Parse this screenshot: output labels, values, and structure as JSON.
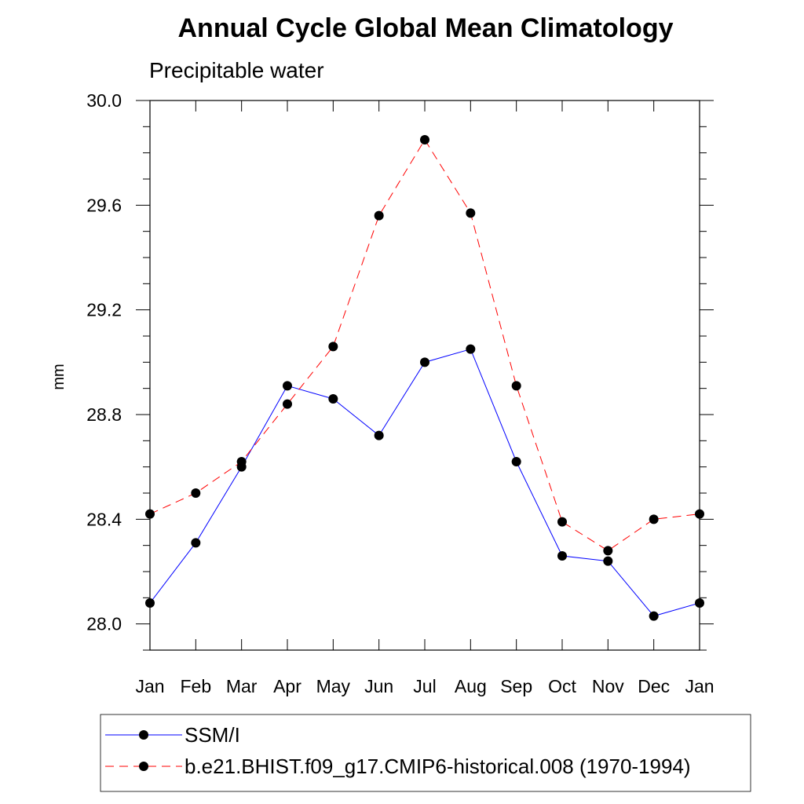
{
  "chart_data": {
    "type": "line",
    "title": "Annual Cycle Global Mean Climatology",
    "subtitle": "Precipitable water",
    "xlabel": "",
    "ylabel": "mm",
    "categories": [
      "Jan",
      "Feb",
      "Mar",
      "Apr",
      "May",
      "Jun",
      "Jul",
      "Aug",
      "Sep",
      "Oct",
      "Nov",
      "Dec",
      "Jan"
    ],
    "ylim": [
      27.9,
      30.0
    ],
    "yticks": [
      "28.0",
      "28.4",
      "28.8",
      "29.2",
      "29.6",
      "30.0"
    ],
    "ytick_values": [
      28.0,
      28.4,
      28.8,
      29.2,
      29.6,
      30.0
    ],
    "series": [
      {
        "name": "SSM/I",
        "color": "#0000ff",
        "dash": "solid",
        "values": [
          28.08,
          28.31,
          28.6,
          28.91,
          28.86,
          28.72,
          29.0,
          29.05,
          28.62,
          28.26,
          28.24,
          28.03,
          28.08
        ]
      },
      {
        "name": "b.e21.BHIST.f09_g17.CMIP6-historical.008 (1970-1994)",
        "color": "#ff0000",
        "dash": "dashed",
        "values": [
          28.42,
          28.5,
          28.62,
          28.84,
          29.06,
          29.56,
          29.85,
          29.57,
          28.91,
          28.39,
          28.28,
          28.4,
          28.42
        ]
      }
    ],
    "legend_position": "bottom"
  }
}
